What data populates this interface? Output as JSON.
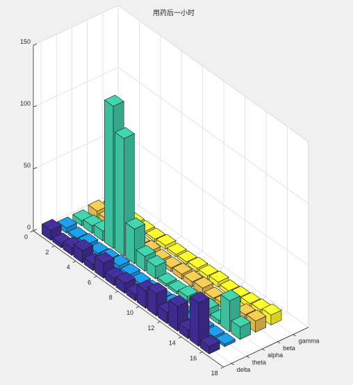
{
  "chart_data": {
    "type": "bar3",
    "title": "用药后一小时",
    "xlabel": "",
    "ylabel": "",
    "zlabel": "",
    "z_ticks": [
      0,
      50,
      100,
      150
    ],
    "zlim": [
      0,
      150
    ],
    "row_ticks": [
      0,
      2,
      4,
      6,
      8,
      10,
      12,
      14,
      16,
      18
    ],
    "rows": [
      1,
      2,
      3,
      4,
      5,
      6,
      7,
      8,
      9,
      10,
      11,
      12,
      13,
      14,
      15,
      16
    ],
    "bands": [
      "delta",
      "theta",
      "alpha",
      "beta",
      "gamma"
    ],
    "grid": true,
    "series": [
      {
        "name": "delta",
        "color": "#3e2b8f",
        "values": [
          8,
          3,
          6,
          10,
          5,
          12,
          6,
          8,
          5,
          14,
          18,
          9,
          20,
          7,
          35,
          6
        ]
      },
      {
        "name": "theta",
        "color": "#1a8fd6",
        "values": [
          4,
          2,
          3,
          2,
          3,
          4,
          3,
          2,
          2,
          2,
          3,
          2,
          2,
          2,
          2,
          2
        ]
      },
      {
        "name": "alpha",
        "color": "#3bbf9c",
        "values": [
          4,
          6,
          8,
          115,
          95,
          28,
          12,
          10,
          2,
          2,
          4,
          3,
          6,
          3,
          25,
          10
        ]
      },
      {
        "name": "beta",
        "color": "#ddb84b",
        "values": [
          6,
          5,
          4,
          3,
          3,
          4,
          3,
          3,
          4,
          4,
          5,
          3,
          4,
          6,
          8,
          9
        ]
      },
      {
        "name": "gamma",
        "color": "#f5ee2a",
        "values": [
          3,
          3,
          2,
          2,
          2,
          3,
          2,
          2,
          3,
          3,
          4,
          3,
          4,
          5,
          6,
          8
        ]
      }
    ]
  }
}
